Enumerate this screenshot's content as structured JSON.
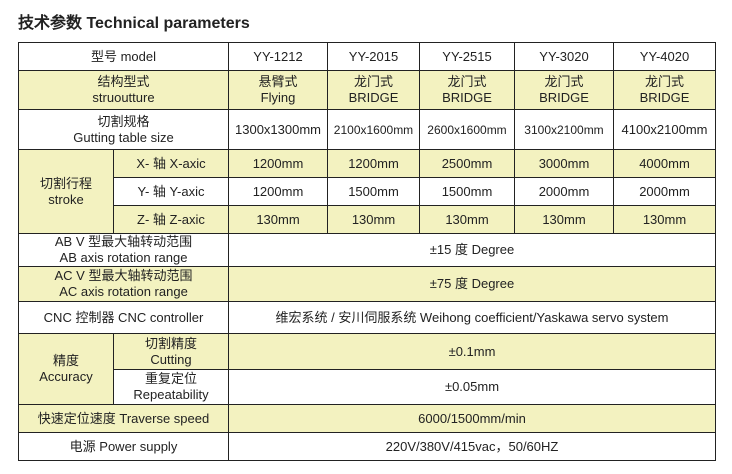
{
  "title": "技术参数 Technical parameters",
  "models": [
    "YY-1212",
    "YY-2015",
    "YY-2515",
    "YY-3020",
    "YY-4020"
  ],
  "rows": {
    "model": {
      "label": "型号  model"
    },
    "structure": {
      "label_cn": "结构型式",
      "label_en": "struoutture",
      "values": [
        [
          "悬臂式",
          "Flying"
        ],
        [
          "龙门式",
          "BRIDGE"
        ],
        [
          "龙门式",
          "BRIDGE"
        ],
        [
          "龙门式",
          "BRIDGE"
        ],
        [
          "龙门式",
          "BRIDGE"
        ]
      ]
    },
    "table_size": {
      "label_cn": "切割规格",
      "label_en": "Gutting table size",
      "values": [
        "1300x1300mm",
        "2100x1600mm",
        "2600x1600mm",
        "3100x2100mm",
        "4100x2100mm"
      ]
    },
    "stroke": {
      "label_cn": "切割行程",
      "label_en": "stroke",
      "x": {
        "label": "X- 轴 X-axic",
        "values": [
          "1200mm",
          "1200mm",
          "2500mm",
          "3000mm",
          "4000mm"
        ]
      },
      "y": {
        "label": "Y- 轴 Y-axic",
        "values": [
          "1200mm",
          "1500mm",
          "1500mm",
          "2000mm",
          "2000mm"
        ]
      },
      "z": {
        "label": "Z- 轴 Z-axic",
        "values": [
          "130mm",
          "130mm",
          "130mm",
          "130mm",
          "130mm"
        ]
      }
    },
    "ab": {
      "label_cn": "AB V 型最大轴转动范围",
      "label_en": "AB axis rotation range",
      "value": "±15 度 Degree"
    },
    "ac": {
      "label_cn": "AC V 型最大轴转动范围",
      "label_en": "AC axis rotation range",
      "value": "±75 度 Degree"
    },
    "cnc": {
      "label": "CNC 控制器 CNC controller",
      "value": "维宏系统 / 安川伺服系统  Weihong coefficient/Yaskawa servo system"
    },
    "accuracy": {
      "label_cn": "精度",
      "label_en": "Accuracy",
      "cutting": {
        "label_cn": "切割精度",
        "label_en": "Cutting",
        "value": "±0.1mm"
      },
      "repeat": {
        "label_cn": "重复定位",
        "label_en": "Repeatability",
        "value": "±0.05mm"
      }
    },
    "traverse": {
      "label": "快速定位速度 Traverse speed",
      "value": "6000/1500mm/min"
    },
    "power": {
      "label": "电源 Power supply",
      "value": "220V/380V/415vac，50/60HZ"
    }
  },
  "colors": {
    "highlight": "#f3f2c0",
    "border": "#222222"
  }
}
